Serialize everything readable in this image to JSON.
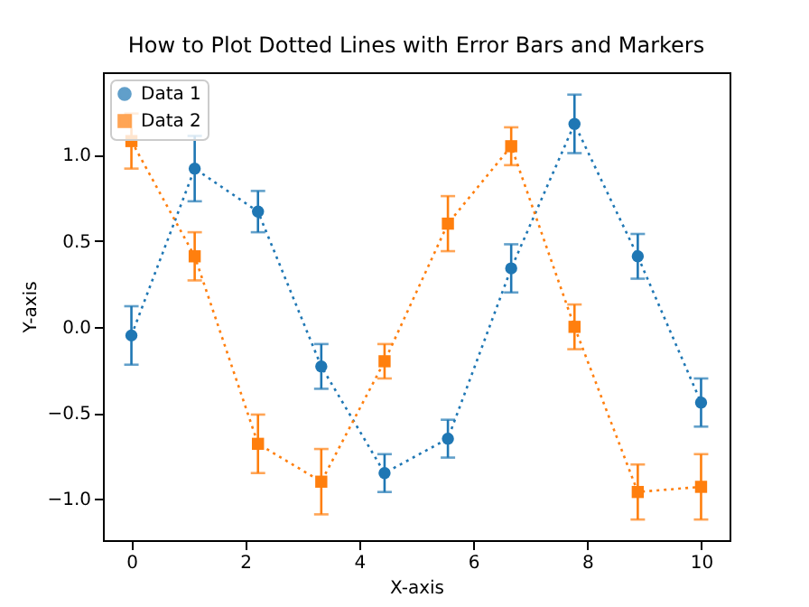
{
  "chart_data": {
    "type": "line",
    "title": "How to Plot Dotted Lines with Error Bars and Markers",
    "xlabel": "X-axis",
    "ylabel": "Y-axis",
    "x": [
      0,
      1.111,
      2.222,
      3.333,
      4.444,
      5.556,
      6.667,
      7.778,
      8.889,
      10
    ],
    "series": [
      {
        "name": "Data 1",
        "color": "#1f77b4",
        "marker": "circle",
        "values": [
          -0.05,
          0.92,
          0.67,
          -0.23,
          -0.85,
          -0.65,
          0.34,
          1.18,
          0.41,
          -0.44
        ],
        "errors": [
          0.17,
          0.19,
          0.12,
          0.13,
          0.11,
          0.11,
          0.14,
          0.17,
          0.13,
          0.14
        ]
      },
      {
        "name": "Data 2",
        "color": "#ff7f0e",
        "marker": "square",
        "values": [
          1.08,
          0.41,
          -0.68,
          -0.9,
          -0.2,
          0.6,
          1.05,
          0.0,
          -0.96,
          -0.93
        ],
        "errors": [
          0.16,
          0.14,
          0.17,
          0.19,
          0.1,
          0.16,
          0.11,
          0.13,
          0.16,
          0.19
        ]
      }
    ],
    "xlim": [
      -0.5,
      10.5
    ],
    "xticks": [
      0,
      2,
      4,
      6,
      8,
      10
    ],
    "ylim": [
      -1.24,
      1.48
    ],
    "yticks": [
      {
        "value": -1,
        "label": "−1.0"
      },
      {
        "value": -0.5,
        "label": "−0.5"
      },
      {
        "value": 0,
        "label": "0.0"
      },
      {
        "value": 0.5,
        "label": "0.5"
      },
      {
        "value": 1,
        "label": "1.0"
      }
    ],
    "line_style": "dotted",
    "legend": "top left"
  }
}
